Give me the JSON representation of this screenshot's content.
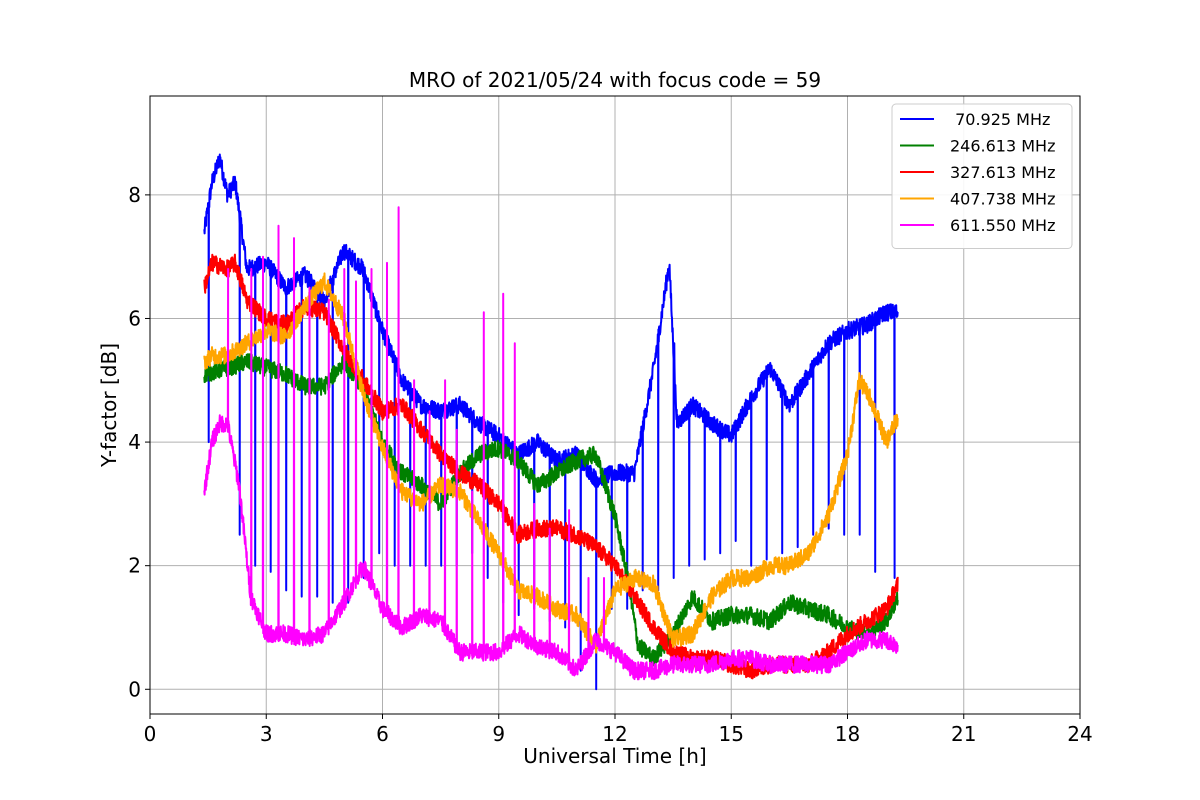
{
  "chart_data": {
    "type": "line",
    "title": "MRO of 2021/05/24 with focus code = 59",
    "xlabel": "Universal Time [h]",
    "ylabel": "Y-factor [dB]",
    "xlim": [
      0,
      24
    ],
    "ylim": [
      -0.4,
      9.6
    ],
    "xticks": [
      "0",
      "3",
      "6",
      "9",
      "12",
      "15",
      "18",
      "21",
      "24"
    ],
    "yticks": [
      "0",
      "2",
      "4",
      "6",
      "8"
    ],
    "grid": true,
    "legend_position": "top-right",
    "series": [
      {
        "name": " 70.925 MHz",
        "color": "#0000ff",
        "x": [
          1.4,
          1.6,
          1.8,
          2.0,
          2.2,
          2.5,
          3.0,
          3.5,
          4.0,
          4.5,
          5.0,
          5.5,
          6.0,
          6.5,
          7.0,
          7.5,
          8.0,
          8.5,
          9.0,
          9.5,
          10.0,
          10.5,
          11.0,
          11.5,
          12.0,
          12.5,
          13.0,
          13.4,
          13.6,
          14.0,
          14.5,
          15.0,
          15.5,
          16.0,
          16.5,
          17.0,
          17.5,
          18.0,
          18.5,
          19.0,
          19.3
        ],
        "y": [
          7.4,
          8.2,
          8.6,
          8.0,
          8.2,
          6.8,
          6.9,
          6.5,
          6.7,
          6.3,
          7.1,
          6.8,
          5.8,
          5.0,
          4.6,
          4.5,
          4.6,
          4.3,
          4.1,
          3.8,
          4.0,
          3.7,
          3.8,
          3.4,
          3.5,
          3.5,
          5.2,
          6.9,
          4.3,
          4.6,
          4.3,
          4.1,
          4.7,
          5.2,
          4.6,
          5.1,
          5.6,
          5.8,
          5.9,
          6.1,
          6.1
        ],
        "dips": [
          [
            1.5,
            4.0
          ],
          [
            2.3,
            2.5
          ],
          [
            2.7,
            2.0
          ],
          [
            3.1,
            1.9
          ],
          [
            3.5,
            1.6
          ],
          [
            3.9,
            1.5
          ],
          [
            4.3,
            1.5
          ],
          [
            4.7,
            1.4
          ],
          [
            5.1,
            1.4
          ],
          [
            5.5,
            1.8
          ],
          [
            5.9,
            2.2
          ],
          [
            6.3,
            2.0
          ],
          [
            6.7,
            2.0
          ],
          [
            7.1,
            2.0
          ],
          [
            7.5,
            2.0
          ],
          [
            7.9,
            2.0
          ],
          [
            8.3,
            2.2
          ],
          [
            8.7,
            1.8
          ],
          [
            9.1,
            1.4
          ],
          [
            9.5,
            1.2
          ],
          [
            9.9,
            1.3
          ],
          [
            10.3,
            1.1
          ],
          [
            10.7,
            1.0
          ],
          [
            11.1,
            0.3
          ],
          [
            11.5,
            0.0
          ],
          [
            11.9,
            1.3
          ],
          [
            12.3,
            1.3
          ],
          [
            12.7,
            1.6
          ],
          [
            13.1,
            1.6
          ],
          [
            13.5,
            1.8
          ],
          [
            13.9,
            2.0
          ],
          [
            14.3,
            2.1
          ],
          [
            14.7,
            2.2
          ],
          [
            15.1,
            2.4
          ],
          [
            15.5,
            2.0
          ],
          [
            15.9,
            2.1
          ],
          [
            16.3,
            2.2
          ],
          [
            16.7,
            2.3
          ],
          [
            17.1,
            2.5
          ],
          [
            17.5,
            2.6
          ],
          [
            17.9,
            2.5
          ],
          [
            18.3,
            2.5
          ],
          [
            18.7,
            1.9
          ],
          [
            19.2,
            1.8
          ]
        ]
      },
      {
        "name": "246.613 MHz",
        "color": "#008000",
        "x": [
          1.4,
          2.0,
          2.5,
          3.0,
          3.5,
          4.0,
          4.5,
          5.0,
          5.5,
          6.0,
          6.5,
          7.0,
          7.5,
          8.0,
          8.5,
          9.0,
          9.5,
          10.0,
          10.5,
          11.0,
          11.5,
          12.0,
          12.3,
          12.6,
          13.0,
          13.5,
          14.0,
          14.5,
          15.0,
          15.5,
          16.0,
          16.5,
          17.0,
          17.5,
          18.0,
          18.5,
          19.0,
          19.3
        ],
        "y": [
          5.1,
          5.2,
          5.3,
          5.2,
          5.1,
          4.9,
          4.9,
          5.3,
          4.9,
          4.0,
          3.5,
          3.3,
          3.0,
          3.5,
          3.8,
          3.9,
          3.7,
          3.3,
          3.5,
          3.7,
          3.8,
          2.8,
          1.9,
          0.7,
          0.5,
          0.9,
          1.5,
          1.1,
          1.2,
          1.2,
          1.1,
          1.4,
          1.3,
          1.2,
          1.0,
          0.9,
          1.1,
          1.5
        ]
      },
      {
        "name": "327.613 MHz",
        "color": "#ff0000",
        "x": [
          1.4,
          1.6,
          2.0,
          2.2,
          2.5,
          3.0,
          3.5,
          4.0,
          4.5,
          5.0,
          5.5,
          6.0,
          6.5,
          7.0,
          7.5,
          8.0,
          8.5,
          9.0,
          9.5,
          10.0,
          10.5,
          11.0,
          11.5,
          12.0,
          12.5,
          13.0,
          13.5,
          14.0,
          14.5,
          15.0,
          15.5,
          16.0,
          16.5,
          17.0,
          17.5,
          18.0,
          18.5,
          19.0,
          19.3
        ],
        "y": [
          6.5,
          6.9,
          6.8,
          6.9,
          6.3,
          6.0,
          5.9,
          6.2,
          6.1,
          5.5,
          5.0,
          4.5,
          4.6,
          4.2,
          3.8,
          3.5,
          3.3,
          3.0,
          2.5,
          2.6,
          2.6,
          2.5,
          2.3,
          2.0,
          1.5,
          1.0,
          0.6,
          0.5,
          0.5,
          0.4,
          0.3,
          0.4,
          0.4,
          0.4,
          0.6,
          0.9,
          1.1,
          1.3,
          1.7
        ]
      },
      {
        "name": "407.738 MHz",
        "color": "#ffa500",
        "x": [
          1.4,
          1.6,
          2.0,
          2.5,
          3.0,
          3.5,
          4.0,
          4.5,
          5.0,
          5.5,
          6.0,
          6.5,
          7.0,
          7.5,
          8.0,
          8.5,
          9.0,
          9.5,
          10.0,
          10.5,
          11.0,
          11.5,
          12.0,
          12.5,
          13.0,
          13.5,
          14.0,
          14.5,
          15.0,
          15.5,
          16.0,
          16.5,
          17.0,
          17.5,
          18.0,
          18.3,
          18.6,
          19.0,
          19.3
        ],
        "y": [
          5.3,
          5.4,
          5.4,
          5.6,
          5.8,
          5.7,
          6.2,
          6.6,
          6.0,
          4.8,
          3.9,
          3.2,
          3.0,
          3.3,
          3.2,
          2.7,
          2.2,
          1.6,
          1.5,
          1.3,
          1.2,
          0.7,
          1.6,
          1.8,
          1.7,
          0.8,
          0.9,
          1.5,
          1.8,
          1.8,
          2.0,
          2.0,
          2.2,
          2.8,
          3.8,
          5.0,
          4.7,
          4.0,
          4.4
        ]
      },
      {
        "name": "611.550 MHz",
        "color": "#ff00ff",
        "x": [
          1.4,
          1.6,
          1.8,
          2.0,
          2.3,
          2.6,
          3.0,
          3.5,
          4.0,
          4.5,
          5.0,
          5.5,
          6.0,
          6.5,
          7.0,
          7.5,
          8.0,
          8.5,
          9.0,
          9.5,
          10.0,
          10.5,
          11.0,
          11.5,
          12.0,
          12.5,
          13.0,
          13.5,
          14.0,
          14.5,
          15.0,
          15.5,
          16.0,
          16.5,
          17.0,
          17.5,
          18.0,
          18.5,
          19.0,
          19.3
        ],
        "y": [
          3.2,
          4.0,
          4.3,
          4.3,
          3.3,
          1.5,
          0.9,
          0.9,
          0.8,
          0.9,
          1.4,
          2.0,
          1.3,
          1.0,
          1.2,
          1.1,
          0.6,
          0.6,
          0.6,
          0.9,
          0.7,
          0.6,
          0.3,
          0.8,
          0.6,
          0.3,
          0.3,
          0.4,
          0.4,
          0.4,
          0.5,
          0.5,
          0.4,
          0.4,
          0.4,
          0.4,
          0.6,
          0.8,
          0.8,
          0.7
        ],
        "peaks": [
          [
            2.0,
            6.8
          ],
          [
            2.6,
            6.8
          ],
          [
            2.9,
            7.0
          ],
          [
            3.3,
            7.5
          ],
          [
            3.7,
            7.3
          ],
          [
            4.1,
            6.5
          ],
          [
            4.6,
            6.3
          ],
          [
            5.0,
            6.8
          ],
          [
            5.3,
            6.6
          ],
          [
            5.7,
            6.8
          ],
          [
            6.1,
            6.9
          ],
          [
            6.4,
            7.8
          ],
          [
            6.8,
            5.0
          ],
          [
            7.2,
            4.5
          ],
          [
            7.6,
            5.0
          ],
          [
            7.9,
            4.2
          ],
          [
            8.3,
            3.2
          ],
          [
            8.6,
            6.1
          ],
          [
            9.1,
            6.4
          ],
          [
            9.4,
            5.6
          ],
          [
            9.9,
            3.0
          ],
          [
            10.3,
            2.6
          ],
          [
            10.8,
            2.9
          ],
          [
            11.3,
            1.8
          ],
          [
            11.7,
            1.8
          ]
        ]
      }
    ]
  }
}
